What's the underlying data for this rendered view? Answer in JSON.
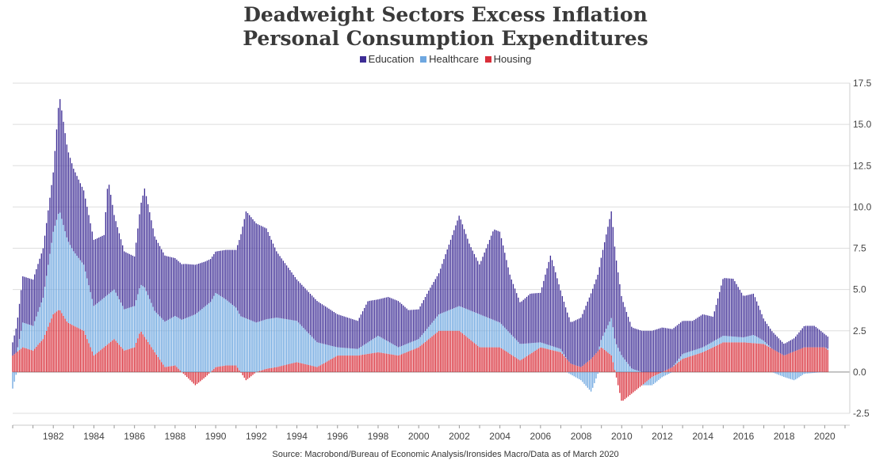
{
  "chart_data": {
    "type": "bar",
    "stacked": true,
    "title": "Deadweight Sectors Excess Inflation",
    "subtitle": "Personal Consumption Expenditures",
    "source": "Source: Macrobond/Bureau of Economic Analysis/Ironsides Macro/Data as of March 2020",
    "ylim": [
      -2.5,
      17.5
    ],
    "yticks": [
      "-2.5",
      "0.0",
      "2.5",
      "5.0",
      "7.5",
      "10.0",
      "12.5",
      "15.0",
      "17.5"
    ],
    "xticks": [
      "1982",
      "1984",
      "1986",
      "1988",
      "1990",
      "1992",
      "1994",
      "1996",
      "1998",
      "2000",
      "2002",
      "2004",
      "2006",
      "2008",
      "2010",
      "2012",
      "2014",
      "2016",
      "2018",
      "2020"
    ],
    "xlim": [
      1980.0,
      2021.0
    ],
    "x_start": 1980.0,
    "x_step": 0.0833,
    "legend_position": "top-center",
    "colors": {
      "education": "#3d2c95",
      "healthcare": "#6ea7e0",
      "housing": "#d92f3a"
    },
    "series": [
      {
        "name": "Education",
        "key": "education",
        "anchors": [
          [
            1980.0,
            0.8
          ],
          [
            1980.5,
            2.8
          ],
          [
            1981.0,
            2.8
          ],
          [
            1981.5,
            3.0
          ],
          [
            1982.0,
            3.6
          ],
          [
            1982.3,
            7.0
          ],
          [
            1982.7,
            5.5
          ],
          [
            1983.0,
            5.0
          ],
          [
            1983.5,
            4.5
          ],
          [
            1984.0,
            4.0
          ],
          [
            1984.5,
            3.8
          ],
          [
            1984.7,
            7.0
          ],
          [
            1985.0,
            4.5
          ],
          [
            1985.5,
            3.5
          ],
          [
            1986.0,
            3.0
          ],
          [
            1986.5,
            6.0
          ],
          [
            1987.0,
            4.5
          ],
          [
            1988.0,
            3.5
          ],
          [
            1988.5,
            3.3
          ],
          [
            1989.0,
            3.0
          ],
          [
            1989.5,
            2.7
          ],
          [
            1990.0,
            2.5
          ],
          [
            1990.5,
            3.0
          ],
          [
            1991.0,
            3.5
          ],
          [
            1991.5,
            6.5
          ],
          [
            1992.0,
            6.0
          ],
          [
            1992.5,
            5.5
          ],
          [
            1993.0,
            4.0
          ],
          [
            1994.0,
            2.5
          ],
          [
            1995.0,
            2.5
          ],
          [
            1996.0,
            2.0
          ],
          [
            1997.0,
            1.7
          ],
          [
            1997.5,
            2.5
          ],
          [
            1998.0,
            2.2
          ],
          [
            1998.5,
            2.7
          ],
          [
            1999.0,
            2.8
          ],
          [
            1999.5,
            2.0
          ],
          [
            2000.0,
            1.8
          ],
          [
            2000.5,
            2.2
          ],
          [
            2001.0,
            2.5
          ],
          [
            2001.5,
            4.0
          ],
          [
            2002.0,
            5.5
          ],
          [
            2002.5,
            4.0
          ],
          [
            2003.0,
            3.0
          ],
          [
            2003.7,
            5.5
          ],
          [
            2004.0,
            5.5
          ],
          [
            2004.5,
            3.5
          ],
          [
            2005.0,
            2.5
          ],
          [
            2005.5,
            3.0
          ],
          [
            2006.0,
            3.0
          ],
          [
            2006.5,
            5.5
          ],
          [
            2007.0,
            3.5
          ],
          [
            2007.5,
            2.5
          ],
          [
            2008.0,
            3.0
          ],
          [
            2008.5,
            4.0
          ],
          [
            2009.0,
            5.0
          ],
          [
            2009.5,
            6.5
          ],
          [
            2010.0,
            3.5
          ],
          [
            2010.5,
            2.5
          ],
          [
            2011.0,
            2.5
          ],
          [
            2011.5,
            2.5
          ],
          [
            2012.0,
            2.7
          ],
          [
            2012.5,
            2.3
          ],
          [
            2013.0,
            2.0
          ],
          [
            2013.5,
            1.8
          ],
          [
            2014.0,
            2.0
          ],
          [
            2014.5,
            1.5
          ],
          [
            2015.0,
            3.5
          ],
          [
            2015.5,
            3.5
          ],
          [
            2016.0,
            2.5
          ],
          [
            2016.5,
            2.5
          ],
          [
            2017.0,
            1.3
          ],
          [
            2017.5,
            1.0
          ],
          [
            2018.0,
            0.7
          ],
          [
            2018.5,
            0.8
          ],
          [
            2019.0,
            1.3
          ],
          [
            2019.5,
            1.3
          ],
          [
            2020.0,
            0.8
          ],
          [
            2020.2,
            0.7
          ]
        ]
      },
      {
        "name": "Healthcare",
        "key": "healthcare",
        "anchors": [
          [
            1980.0,
            -1.0
          ],
          [
            1980.5,
            1.5
          ],
          [
            1981.0,
            1.5
          ],
          [
            1981.5,
            2.5
          ],
          [
            1982.0,
            5.0
          ],
          [
            1982.3,
            6.0
          ],
          [
            1982.7,
            5.0
          ],
          [
            1983.0,
            4.5
          ],
          [
            1983.5,
            4.0
          ],
          [
            1984.0,
            3.0
          ],
          [
            1984.5,
            3.0
          ],
          [
            1985.0,
            3.0
          ],
          [
            1985.5,
            2.5
          ],
          [
            1986.0,
            2.5
          ],
          [
            1986.5,
            3.0
          ],
          [
            1987.0,
            2.5
          ],
          [
            1988.0,
            3.0
          ],
          [
            1989.0,
            3.5
          ],
          [
            1990.0,
            4.5
          ],
          [
            1990.5,
            4.0
          ],
          [
            1991.0,
            3.5
          ],
          [
            1992.0,
            3.0
          ],
          [
            1993.0,
            3.0
          ],
          [
            1994.0,
            2.5
          ],
          [
            1995.0,
            1.5
          ],
          [
            1996.0,
            0.5
          ],
          [
            1997.0,
            0.4
          ],
          [
            1998.0,
            1.0
          ],
          [
            1999.0,
            0.5
          ],
          [
            2000.0,
            0.5
          ],
          [
            2001.0,
            1.0
          ],
          [
            2002.0,
            1.5
          ],
          [
            2003.0,
            2.0
          ],
          [
            2004.0,
            1.5
          ],
          [
            2005.0,
            1.0
          ],
          [
            2006.0,
            0.3
          ],
          [
            2007.0,
            0.2
          ],
          [
            2008.0,
            -0.5
          ],
          [
            2008.5,
            -1.2
          ],
          [
            2009.0,
            0.5
          ],
          [
            2009.5,
            2.3
          ],
          [
            2010.0,
            1.0
          ],
          [
            2010.5,
            0.2
          ],
          [
            2011.0,
            0.0
          ],
          [
            2011.5,
            -0.5
          ],
          [
            2012.0,
            -0.3
          ],
          [
            2012.5,
            0.0
          ],
          [
            2013.0,
            0.3
          ],
          [
            2014.0,
            0.3
          ],
          [
            2015.0,
            0.4
          ],
          [
            2016.0,
            0.3
          ],
          [
            2016.5,
            0.5
          ],
          [
            2017.0,
            0.2
          ],
          [
            2018.0,
            -0.3
          ],
          [
            2018.5,
            -0.5
          ],
          [
            2019.0,
            -0.1
          ],
          [
            2020.0,
            0.0
          ],
          [
            2020.2,
            0.1
          ]
        ]
      },
      {
        "name": "Housing",
        "key": "housing",
        "anchors": [
          [
            1980.0,
            1.0
          ],
          [
            1980.5,
            1.5
          ],
          [
            1981.0,
            1.3
          ],
          [
            1981.5,
            2.0
          ],
          [
            1982.0,
            3.5
          ],
          [
            1982.3,
            3.8
          ],
          [
            1982.7,
            3.0
          ],
          [
            1983.5,
            2.5
          ],
          [
            1984.0,
            1.0
          ],
          [
            1984.5,
            1.5
          ],
          [
            1985.0,
            2.0
          ],
          [
            1985.5,
            1.3
          ],
          [
            1986.0,
            1.5
          ],
          [
            1986.3,
            2.5
          ],
          [
            1987.0,
            1.2
          ],
          [
            1987.5,
            0.3
          ],
          [
            1988.0,
            0.4
          ],
          [
            1988.5,
            -0.2
          ],
          [
            1989.0,
            -0.8
          ],
          [
            1989.5,
            -0.3
          ],
          [
            1990.0,
            0.3
          ],
          [
            1990.5,
            0.4
          ],
          [
            1991.0,
            0.4
          ],
          [
            1991.5,
            -0.5
          ],
          [
            1992.0,
            0.0
          ],
          [
            1992.5,
            0.2
          ],
          [
            1993.0,
            0.3
          ],
          [
            1994.0,
            0.6
          ],
          [
            1995.0,
            0.3
          ],
          [
            1996.0,
            1.0
          ],
          [
            1997.0,
            1.0
          ],
          [
            1998.0,
            1.2
          ],
          [
            1999.0,
            1.0
          ],
          [
            2000.0,
            1.5
          ],
          [
            2001.0,
            2.5
          ],
          [
            2002.0,
            2.5
          ],
          [
            2003.0,
            1.5
          ],
          [
            2004.0,
            1.5
          ],
          [
            2005.0,
            0.7
          ],
          [
            2006.0,
            1.5
          ],
          [
            2007.0,
            1.2
          ],
          [
            2007.5,
            0.5
          ],
          [
            2008.0,
            0.3
          ],
          [
            2008.5,
            0.8
          ],
          [
            2009.0,
            1.5
          ],
          [
            2009.5,
            1.0
          ],
          [
            2010.0,
            -1.8
          ],
          [
            2010.5,
            -1.3
          ],
          [
            2011.0,
            -0.8
          ],
          [
            2011.5,
            -0.3
          ],
          [
            2012.0,
            0.0
          ],
          [
            2012.5,
            0.3
          ],
          [
            2013.0,
            0.8
          ],
          [
            2014.0,
            1.2
          ],
          [
            2015.0,
            1.8
          ],
          [
            2016.0,
            1.8
          ],
          [
            2017.0,
            1.7
          ],
          [
            2018.0,
            1.0
          ],
          [
            2019.0,
            1.5
          ],
          [
            2020.0,
            1.5
          ],
          [
            2020.2,
            1.3
          ]
        ]
      }
    ]
  }
}
